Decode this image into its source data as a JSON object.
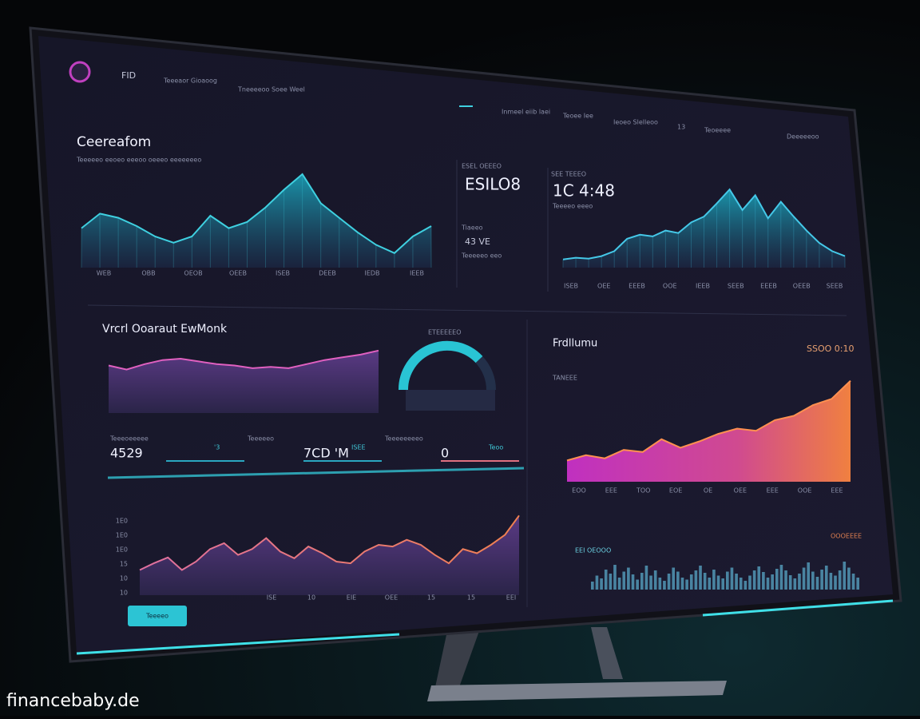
{
  "header": {
    "brand": "FID",
    "nav": [
      "Teeeaor Gioaoog",
      "Tneeeeoo Soee Weel",
      "Inmeel eiib laei",
      "Teoee Iee",
      "Ieoeo Slelleoo",
      "13",
      "Teoeeee",
      "Deeeeeoo"
    ]
  },
  "overview": {
    "title": "Ceereafom",
    "subtitle": "Teeeeeo eeoeo eeeoo oeeeo eeeeeeeo",
    "values": [
      38,
      52,
      48,
      40,
      30,
      24,
      30,
      50,
      38,
      44,
      58,
      75,
      90,
      62,
      48,
      34,
      22,
      14,
      30,
      40
    ],
    "x_labels": [
      "WEB",
      "OBB",
      "OEOB",
      "OEEB",
      "ISEB",
      "DEEB",
      "IEDB",
      "IEEB"
    ]
  },
  "stat": {
    "label": "ESEL OEEEO",
    "value": "ESILO8",
    "sub_label": "Tiaeeo",
    "sub_value": "43 VE",
    "note": "Teeeeeo eeo"
  },
  "trend": {
    "label": "SEE TEEEO",
    "value": "1C 4:48",
    "note": "Teeeeo eeeo",
    "values": [
      10,
      12,
      11,
      14,
      20,
      35,
      40,
      38,
      45,
      42,
      55,
      62,
      78,
      95,
      70,
      88,
      60,
      80,
      62,
      45,
      30,
      20,
      14
    ],
    "x_labels": [
      "ISEB",
      "OEE",
      "EEEB",
      "OOE",
      "IEEB",
      "SEEB",
      "EEEB",
      "OEEB",
      "SEEB"
    ]
  },
  "analytics": {
    "title": "Vrcrl Ooaraut EwMonk",
    "gauge_label": "ETEEEEEO",
    "area_values": [
      70,
      64,
      72,
      78,
      80,
      76,
      72,
      70,
      66,
      68,
      66,
      72,
      78,
      82,
      86,
      92
    ],
    "kpis": [
      {
        "label": "Teeeoeeeee",
        "value": "4529",
        "unit": "'3"
      },
      {
        "label": "Teeeeeo",
        "value": "7CD 'M",
        "unit": "ISEE"
      },
      {
        "label": "Teeeeeeeeo",
        "value": "0",
        "unit": "Teoo"
      }
    ],
    "line_values": [
      30,
      38,
      45,
      30,
      40,
      55,
      62,
      48,
      55,
      68,
      52,
      44,
      58,
      50,
      40,
      38,
      52,
      60,
      58,
      66,
      60,
      48,
      38,
      55,
      50,
      60,
      72,
      95
    ],
    "y_labels": [
      "1E0",
      "1E0",
      "1E0",
      "15",
      "10",
      "10"
    ],
    "x_labels": [
      "ISE",
      "10",
      "EIE",
      "OEE",
      "15",
      "15",
      "EEI"
    ],
    "button": "Teeeeo"
  },
  "revenue": {
    "title": "Frdllumu",
    "value": "SSOO 0:10",
    "label": "TANEEE",
    "area_values": [
      20,
      25,
      22,
      30,
      28,
      40,
      32,
      38,
      45,
      50,
      48,
      58,
      62,
      72,
      78,
      95
    ],
    "x_labels": [
      "EOO",
      "EEE",
      "TOO",
      "EOE",
      "OE",
      "OEE",
      "EEE",
      "OOE",
      "EEE"
    ],
    "bars_label": "EEI OEOOO",
    "bars_note": "OOOEEEE",
    "bar_values": [
      20,
      35,
      28,
      50,
      40,
      62,
      30,
      45,
      55,
      38,
      25,
      42,
      60,
      35,
      48,
      30,
      22,
      40,
      55,
      45,
      30,
      25,
      38,
      48,
      60,
      42,
      30,
      50,
      35,
      28,
      45,
      55,
      40,
      30,
      22,
      35,
      48,
      58,
      44,
      30,
      38,
      52,
      62,
      48,
      36,
      28,
      40,
      55,
      68,
      45,
      32,
      50,
      60,
      42,
      35,
      48,
      70,
      55,
      40,
      30
    ]
  },
  "watermark": "financebaby.de"
}
